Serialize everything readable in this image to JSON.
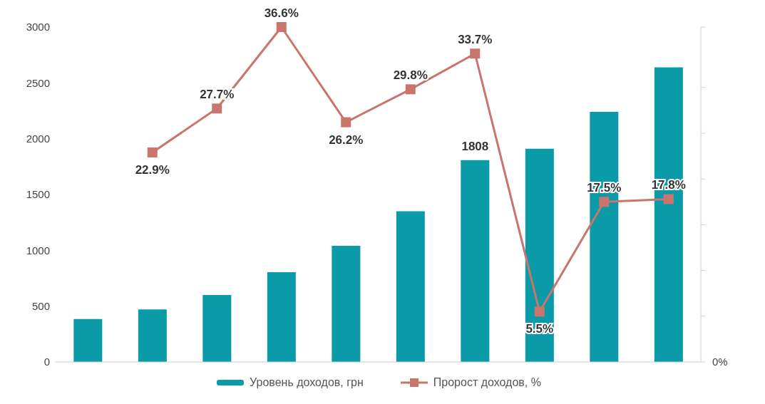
{
  "chart_data": {
    "type": "bar",
    "categories": [
      null,
      null,
      null,
      null,
      null,
      null,
      null,
      null,
      null,
      null
    ],
    "series": [
      {
        "name": "Уровень доходов, грн",
        "color": "#0a9aa8",
        "values": [
          385,
          470,
          600,
          805,
          1040,
          1350,
          1808,
          1910,
          2240,
          2640
        ],
        "value_labels": [
          null,
          null,
          null,
          null,
          null,
          null,
          "1808",
          null,
          null,
          null
        ]
      },
      {
        "name": "Пророст доходов, %",
        "type": "line",
        "axis": "y2",
        "color": "#c9756b",
        "marker": "square",
        "values": [
          null,
          22.9,
          27.7,
          36.6,
          26.2,
          29.8,
          33.7,
          5.5,
          17.5,
          17.8
        ],
        "value_labels": [
          null,
          "22.9%",
          "27.7%",
          "36.6%",
          "26.2%",
          "29.8%",
          "33.7%",
          "5.5%",
          "17.5%",
          "17.8%"
        ]
      }
    ],
    "ylim": [
      0,
      3000
    ],
    "yticks": [
      0,
      500,
      1000,
      1500,
      2000,
      2500,
      3000
    ],
    "annotations": [
      "0%"
    ],
    "grid": false,
    "legend": "bottom"
  }
}
